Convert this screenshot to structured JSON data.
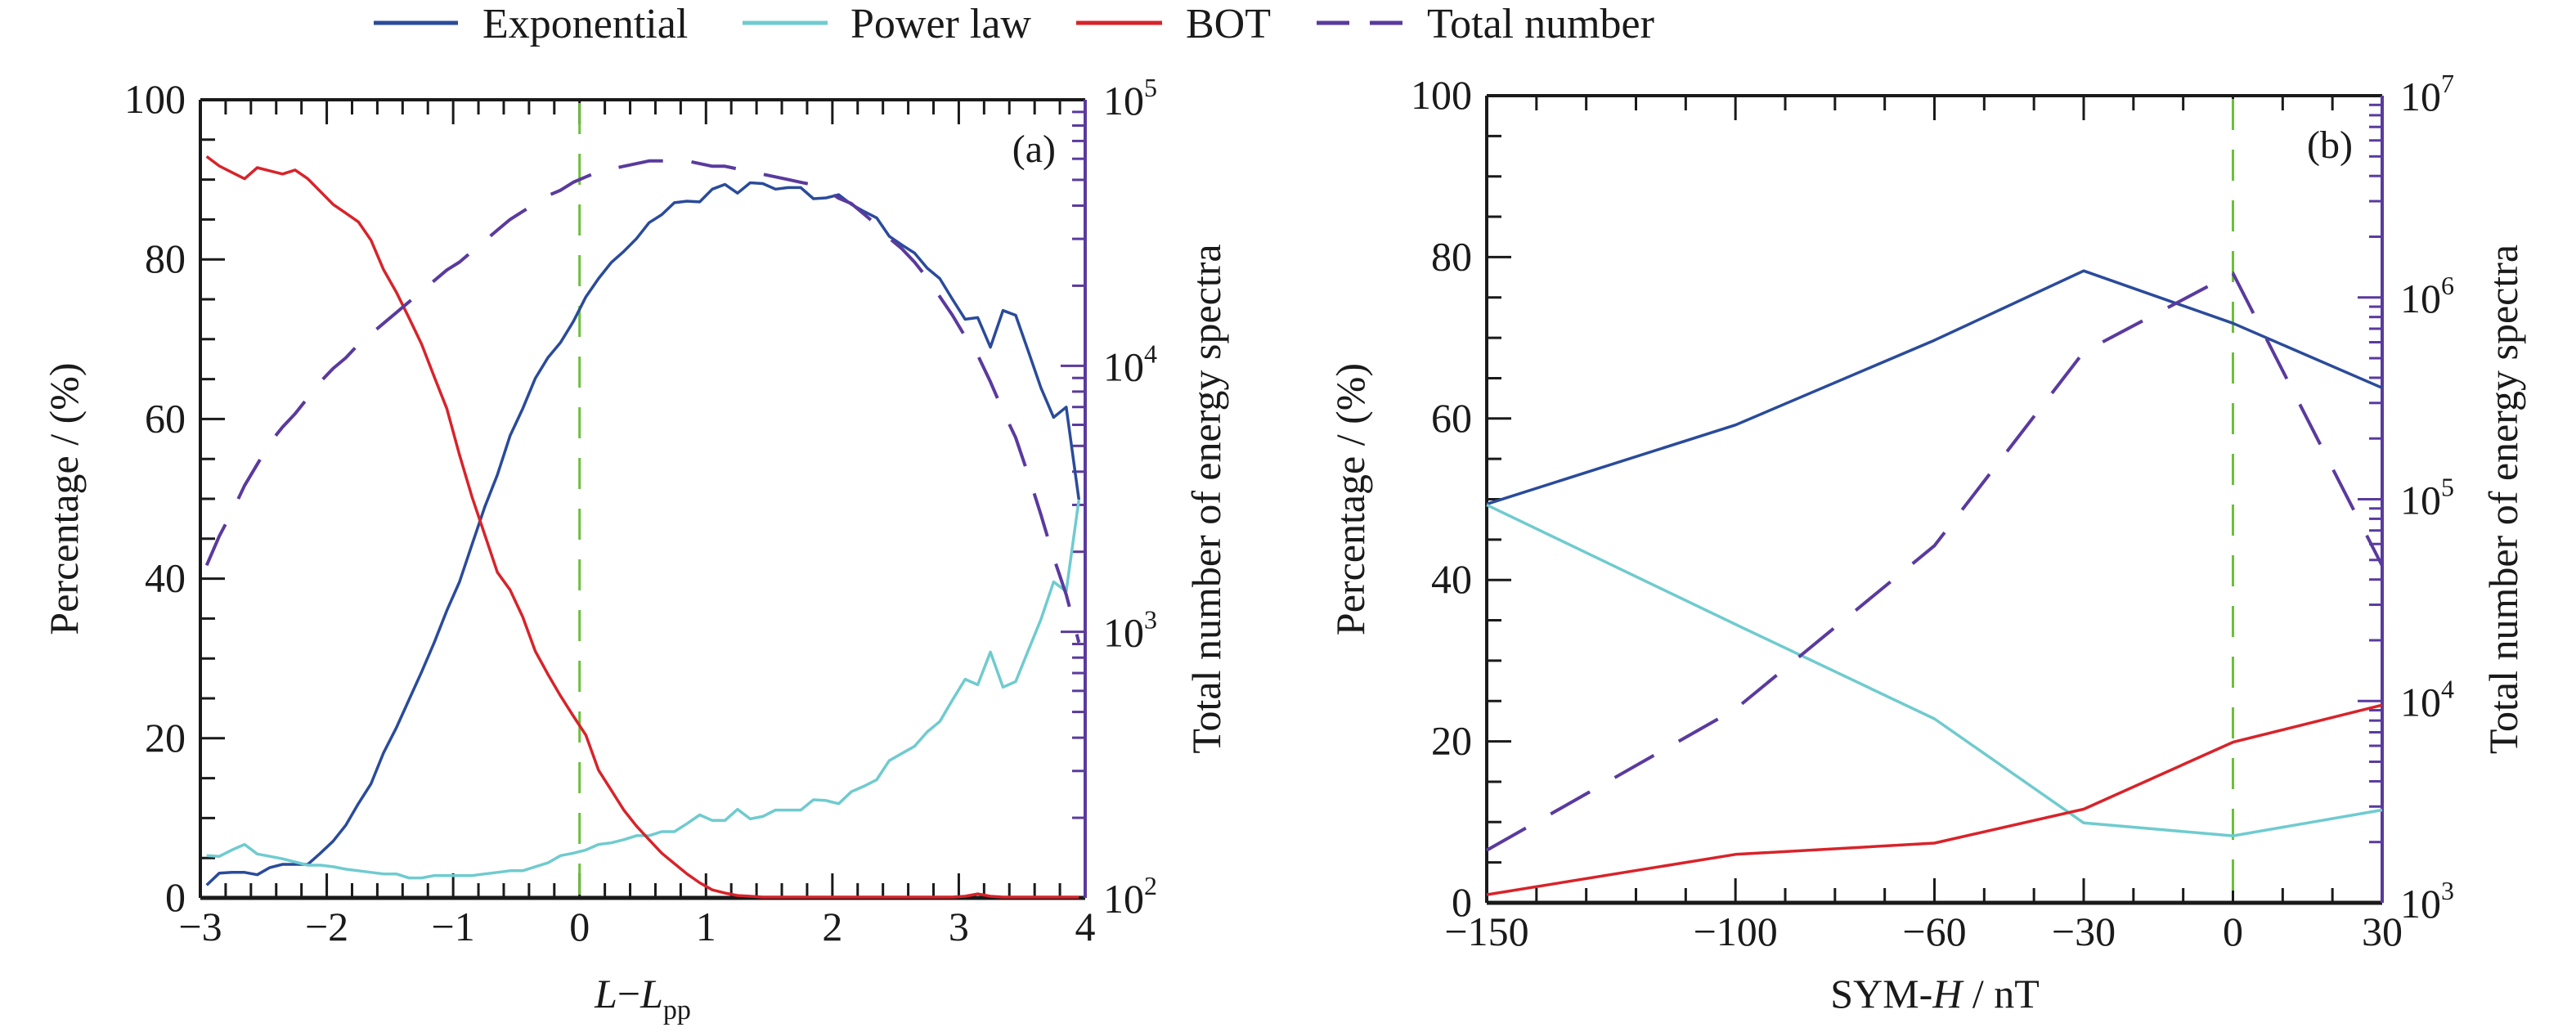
{
  "legend": {
    "items": [
      {
        "label": "Exponential",
        "color": "#2a4b9b",
        "dash": false
      },
      {
        "label": "Power law",
        "color": "#6fcbcf",
        "dash": false
      },
      {
        "label": "BOT",
        "color": "#d8232a",
        "dash": false
      },
      {
        "label": "Total number",
        "color": "#5a3a9e",
        "dash": true
      }
    ]
  },
  "colors": {
    "exponential": "#2a4b9b",
    "power_law": "#6fcbcf",
    "bot": "#d8232a",
    "total": "#5a3a9e",
    "reference_line": "#6cbf3c",
    "axis": "#1a1a1a",
    "right_axis": "#5a3a9e"
  },
  "chart_data": [
    {
      "type": "line",
      "panel_label": "(a)",
      "xlabel_main": "L",
      "xlabel_sep": "−",
      "xlabel_sub_base": "L",
      "xlabel_sub": "pp",
      "ylabel": "Percentage / (%)",
      "ylabel_right": "Total number of energy spectra",
      "xlim": [
        -3,
        4
      ],
      "ylim": [
        0,
        100
      ],
      "ylim_right_log10": [
        2,
        5
      ],
      "xticks": [
        -3,
        -2,
        -1,
        0,
        1,
        2,
        3,
        4
      ],
      "xtick_labels": [
        "−3",
        "−2",
        "−1",
        "0",
        "1",
        "2",
        "3",
        "4"
      ],
      "yticks": [
        0,
        20,
        40,
        60,
        80,
        100
      ],
      "ytick_labels": [
        "0",
        "20",
        "40",
        "60",
        "80",
        "100"
      ],
      "yticks_right": [
        {
          "base": "10",
          "exp": "2"
        },
        {
          "base": "10",
          "exp": "3"
        },
        {
          "base": "10",
          "exp": "4"
        },
        {
          "base": "10",
          "exp": "5"
        }
      ],
      "reference_x": 0,
      "grid": false,
      "x": [
        -2.95,
        -2.85,
        -2.75,
        -2.65,
        -2.55,
        -2.45,
        -2.35,
        -2.25,
        -2.15,
        -2.05,
        -1.95,
        -1.85,
        -1.75,
        -1.65,
        -1.55,
        -1.45,
        -1.35,
        -1.25,
        -1.15,
        -1.05,
        -0.95,
        -0.85,
        -0.75,
        -0.65,
        -0.55,
        -0.45,
        -0.35,
        -0.25,
        -0.15,
        -0.05,
        0.05,
        0.15,
        0.25,
        0.35,
        0.45,
        0.55,
        0.65,
        0.75,
        0.85,
        0.95,
        1.05,
        1.15,
        1.25,
        1.35,
        1.45,
        1.55,
        1.65,
        1.75,
        1.85,
        1.95,
        2.05,
        2.15,
        2.25,
        2.35,
        2.45,
        2.55,
        2.65,
        2.75,
        2.85,
        2.95,
        3.05,
        3.15,
        3.25,
        3.35,
        3.45,
        3.55,
        3.65,
        3.75,
        3.85,
        3.95
      ],
      "series": [
        {
          "name": "Exponential",
          "axis": "left",
          "values": [
            1.6,
            3.1,
            3.2,
            3.2,
            2.9,
            3.8,
            4.2,
            4.2,
            4.2,
            5.6,
            7.1,
            9.1,
            11.8,
            14.3,
            18.2,
            21.3,
            24.8,
            28.3,
            32.0,
            36.0,
            39.6,
            44.3,
            49.0,
            53.0,
            57.9,
            61.3,
            65.1,
            67.7,
            69.6,
            72.2,
            75.3,
            77.6,
            79.6,
            81.0,
            82.6,
            84.6,
            85.6,
            87.1,
            87.3,
            87.2,
            88.8,
            89.4,
            88.3,
            89.6,
            89.5,
            88.8,
            89.0,
            89.0,
            87.6,
            87.7,
            88.1,
            86.9,
            86.0,
            85.2,
            82.9,
            81.8,
            80.8,
            78.9,
            77.6,
            75.0,
            72.5,
            72.7,
            69.0,
            73.6,
            73.0,
            68.5,
            63.9,
            60.2,
            61.5,
            49.9
          ]
        },
        {
          "name": "Power law",
          "axis": "left",
          "values": [
            5.3,
            5.2,
            6.0,
            6.7,
            5.5,
            5.2,
            4.9,
            4.5,
            4.1,
            4.1,
            3.9,
            3.6,
            3.4,
            3.2,
            3.0,
            3.0,
            2.5,
            2.5,
            2.8,
            2.8,
            2.8,
            2.8,
            3.0,
            3.2,
            3.4,
            3.4,
            3.9,
            4.4,
            5.3,
            5.6,
            6.0,
            6.7,
            6.9,
            7.3,
            7.8,
            7.8,
            8.3,
            8.3,
            9.3,
            10.4,
            9.7,
            9.7,
            11.1,
            9.9,
            10.2,
            11.0,
            11.0,
            11.0,
            12.3,
            12.2,
            11.8,
            13.3,
            14.0,
            14.8,
            17.2,
            18.1,
            19.0,
            20.8,
            22.1,
            24.8,
            27.4,
            26.7,
            30.8,
            26.4,
            27.1,
            31.0,
            34.9,
            39.6,
            38.4,
            49.9
          ]
        },
        {
          "name": "BOT",
          "axis": "left",
          "values": [
            92.9,
            91.7,
            90.9,
            90.1,
            91.5,
            91.1,
            90.7,
            91.2,
            90.1,
            88.5,
            86.9,
            85.8,
            84.7,
            82.4,
            78.7,
            75.9,
            72.7,
            69.4,
            65.3,
            61.3,
            55.5,
            50.2,
            45.5,
            40.8,
            38.6,
            35.2,
            30.9,
            28.0,
            25.3,
            22.8,
            20.4,
            16.0,
            13.5,
            11.0,
            9.0,
            7.3,
            5.6,
            4.3,
            3.0,
            1.9,
            1.0,
            0.6,
            0.3,
            0.2,
            0.1,
            0.1,
            0.1,
            0.1,
            0.1,
            0.1,
            0.1,
            0.1,
            0.1,
            0.1,
            0.1,
            0.1,
            0.1,
            0.1,
            0.1,
            0.1,
            0.2,
            0.5,
            0.2,
            0.1,
            0.1,
            0.1,
            0.1,
            0.1,
            0.1,
            0.1
          ]
        },
        {
          "name": "Total number",
          "axis": "right",
          "log10_values": [
            3.25,
            3.36,
            3.45,
            3.55,
            3.63,
            3.71,
            3.77,
            3.82,
            3.88,
            3.94,
            3.99,
            4.03,
            4.08,
            4.12,
            4.16,
            4.2,
            4.24,
            4.28,
            4.32,
            4.36,
            4.39,
            4.43,
            4.47,
            4.51,
            4.55,
            4.58,
            4.61,
            4.64,
            4.66,
            4.69,
            4.71,
            4.73,
            4.74,
            4.75,
            4.76,
            4.77,
            4.77,
            4.77,
            4.77,
            4.76,
            4.75,
            4.75,
            4.74,
            4.73,
            4.72,
            4.71,
            4.7,
            4.69,
            4.68,
            4.66,
            4.63,
            4.61,
            4.57,
            4.53,
            4.48,
            4.44,
            4.39,
            4.33,
            4.26,
            4.19,
            4.11,
            4.04,
            3.94,
            3.83,
            3.73,
            3.59,
            3.44,
            3.28,
            3.14,
            2.96
          ]
        }
      ]
    },
    {
      "type": "line",
      "panel_label": "(b)",
      "xlabel_main": "SYM-",
      "xlabel_italic": "H",
      "xlabel_unit": " / nT",
      "ylabel": "Percentage / (%)",
      "ylabel_right": "Total number of energy spectra",
      "xlim": [
        -150,
        30
      ],
      "ylim": [
        0,
        100
      ],
      "ylim_right_log10": [
        3,
        7
      ],
      "xticks": [
        -150,
        -100,
        -60,
        -30,
        0,
        30
      ],
      "xtick_labels": [
        "−150",
        "−100",
        "−60",
        "−30",
        "0",
        "30"
      ],
      "yticks": [
        0,
        20,
        40,
        60,
        80,
        100
      ],
      "ytick_labels": [
        "0",
        "20",
        "40",
        "60",
        "80",
        "100"
      ],
      "yticks_right": [
        {
          "base": "10",
          "exp": "3"
        },
        {
          "base": "10",
          "exp": "4"
        },
        {
          "base": "10",
          "exp": "5"
        },
        {
          "base": "10",
          "exp": "6"
        },
        {
          "base": "10",
          "exp": "7"
        }
      ],
      "reference_x": 0,
      "grid": false,
      "x": [
        -150,
        -100,
        -60,
        -30,
        0,
        30
      ],
      "series": [
        {
          "name": "Exponential",
          "axis": "left",
          "values": [
            49.4,
            59.2,
            69.7,
            78.3,
            71.8,
            63.8
          ]
        },
        {
          "name": "Power law",
          "axis": "left",
          "values": [
            49.3,
            34.5,
            22.8,
            9.9,
            8.3,
            11.5
          ]
        },
        {
          "name": "BOT",
          "axis": "left",
          "values": [
            1.0,
            6.0,
            7.4,
            11.6,
            19.9,
            24.5
          ]
        },
        {
          "name": "Total number",
          "axis": "right",
          "log10_values": [
            3.26,
            3.96,
            4.77,
            5.73,
            6.12,
            4.67
          ]
        }
      ]
    }
  ]
}
